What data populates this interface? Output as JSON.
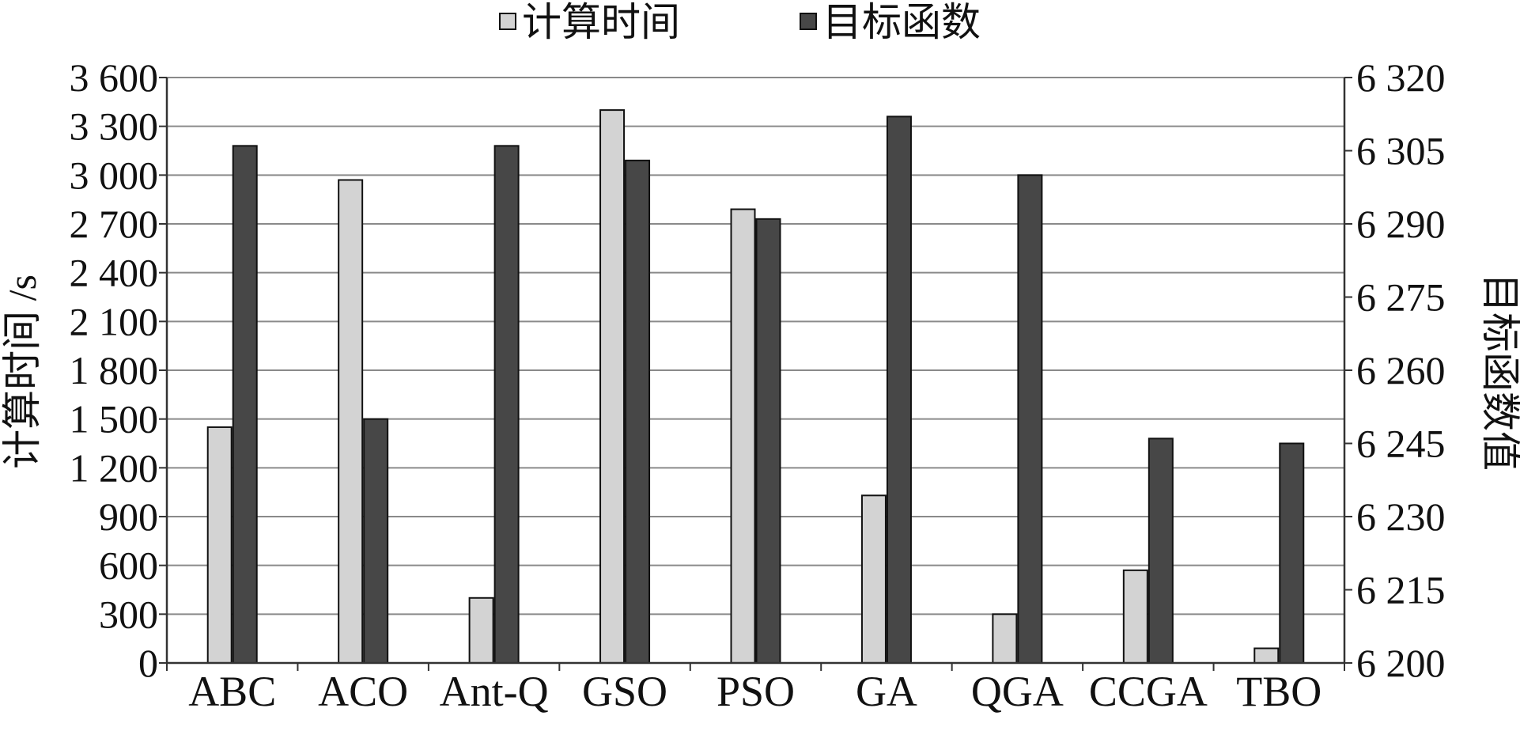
{
  "chart_data": {
    "type": "bar",
    "categories": [
      "ABC",
      "ACO",
      "Ant-Q",
      "GSO",
      "PSO",
      "GA",
      "QGA",
      "CCGA",
      "TBO"
    ],
    "series": [
      {
        "name": "计算时间",
        "axis": "left",
        "color": "#d3d3d3",
        "values": [
          1450,
          2970,
          400,
          3400,
          2790,
          1030,
          300,
          570,
          90
        ]
      },
      {
        "name": "目标函数",
        "axis": "right",
        "color": "#474747",
        "values": [
          6306,
          6250,
          6306,
          6303,
          6291,
          6312,
          6300,
          6246,
          6245
        ]
      }
    ],
    "ylabel": "计算时间 /s",
    "ylim": [
      0,
      3600
    ],
    "yticks": [
      0,
      300,
      600,
      900,
      1200,
      1500,
      1800,
      2100,
      2400,
      2700,
      3000,
      3300,
      3600
    ],
    "ytick_labels": [
      "0",
      "300",
      "600",
      "900",
      "1 200",
      "1 500",
      "1 800",
      "2 100",
      "2 400",
      "2 700",
      "3 000",
      "3 300",
      "3 600"
    ],
    "y2label": "目标函数值",
    "y2lim": [
      6200,
      6320
    ],
    "y2ticks": [
      6200,
      6215,
      6230,
      6245,
      6260,
      6275,
      6290,
      6305,
      6320
    ],
    "y2tick_labels": [
      "6 200",
      "6 215",
      "6 230",
      "6 245",
      "6 260",
      "6 275",
      "6 290",
      "6 305",
      "6 320"
    ],
    "grid": true,
    "legend_position": "top-center"
  }
}
